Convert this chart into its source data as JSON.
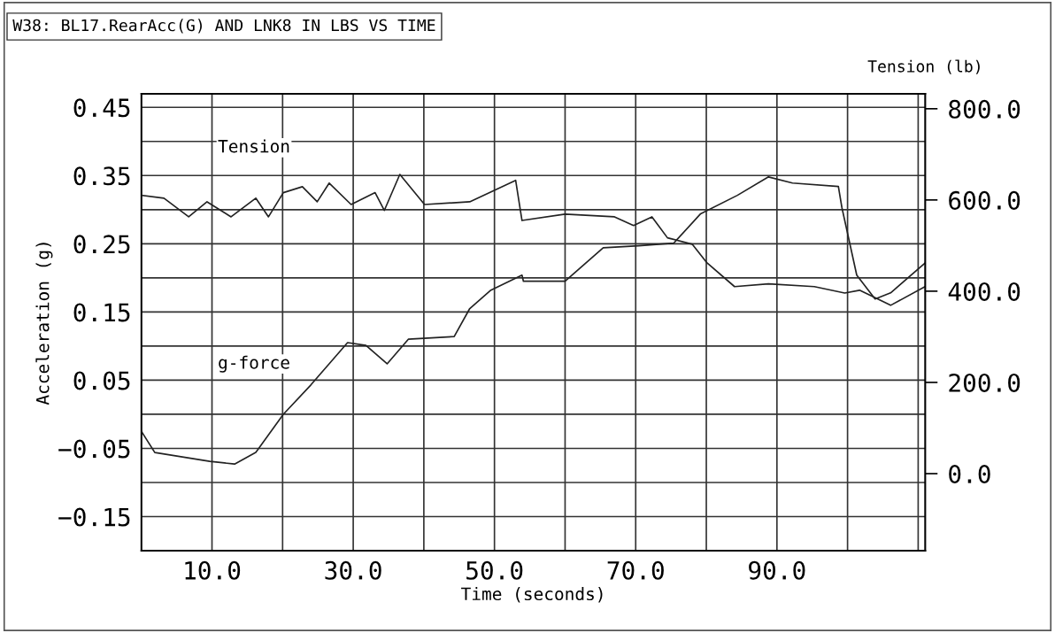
{
  "chart_data": {
    "type": "line",
    "title": "W38: BL17.RearAcc(G) AND LNK8 IN LBS VS TIME",
    "xlabel": "Time (seconds)",
    "ylabel": "Acceleration (g)",
    "y2label": "Tension (lb)",
    "xlim": [
      0,
      111
    ],
    "xticks": [
      {
        "value": 10,
        "label": "10.0"
      },
      {
        "value": 20,
        "label": null
      },
      {
        "value": 30,
        "label": "30.0"
      },
      {
        "value": 40,
        "label": null
      },
      {
        "value": 50,
        "label": "50.0"
      },
      {
        "value": 60,
        "label": null
      },
      {
        "value": 70,
        "label": "70.0"
      },
      {
        "value": 80,
        "label": null
      },
      {
        "value": 90,
        "label": "90.0"
      },
      {
        "value": 100,
        "label": null
      },
      {
        "value": 110,
        "label": null
      }
    ],
    "ylim": [
      -0.2,
      0.47
    ],
    "yticks": [
      {
        "value": -0.15,
        "label": "−0.15"
      },
      {
        "value": -0.1,
        "label": null
      },
      {
        "value": -0.05,
        "label": "−0.05"
      },
      {
        "value": 0,
        "label": null
      },
      {
        "value": 0.05,
        "label": "0.05"
      },
      {
        "value": 0.1,
        "label": null
      },
      {
        "value": 0.15,
        "label": "0.15"
      },
      {
        "value": 0.2,
        "label": null
      },
      {
        "value": 0.25,
        "label": "0.25"
      },
      {
        "value": 0.3,
        "label": null
      },
      {
        "value": 0.35,
        "label": "0.35"
      },
      {
        "value": 0.4,
        "label": null
      },
      {
        "value": 0.45,
        "label": "0.45"
      }
    ],
    "y2lim": [
      -169,
      833
    ],
    "y2ticks": [
      {
        "value": 0,
        "label": "0.0"
      },
      {
        "value": 200,
        "label": "200.0"
      },
      {
        "value": 400,
        "label": "400.0"
      },
      {
        "value": 600,
        "label": "600.0"
      },
      {
        "value": 800,
        "label": "800.0"
      }
    ],
    "grid": true,
    "line_style": "solid",
    "marker": "none",
    "series": [
      {
        "name": "g-force",
        "color": "#222222",
        "x": [
          0.0,
          1.9,
          9.7,
          13.2,
          16.2,
          20.1,
          24.0,
          29.2,
          31.8,
          34.8,
          37.8,
          44.3,
          46.5,
          49.5,
          53.9,
          54.1,
          60.0,
          65.4,
          70.4,
          75.4,
          79.2,
          84.4,
          88.8,
          92.2,
          98.7,
          99.2,
          101.3,
          103.9,
          106.1,
          111.0
        ],
        "values": [
          -0.025,
          -0.056,
          -0.069,
          -0.073,
          -0.056,
          0.0,
          0.043,
          0.105,
          0.101,
          0.074,
          0.11,
          0.114,
          0.155,
          0.182,
          0.204,
          0.195,
          0.195,
          0.244,
          0.247,
          0.251,
          0.294,
          0.321,
          0.348,
          0.339,
          0.334,
          0.303,
          0.204,
          0.169,
          0.178,
          0.222
        ]
      },
      {
        "name": "Tension",
        "color": "#222222",
        "axis": "y2",
        "x": [
          0.2,
          3.2,
          6.7,
          9.3,
          12.7,
          16.2,
          18.0,
          20.1,
          22.8,
          24.9,
          26.6,
          29.7,
          33.1,
          34.4,
          36.6,
          40.1,
          46.5,
          53.0,
          53.9,
          60.0,
          67.0,
          69.7,
          72.3,
          74.5,
          78.0,
          80.1,
          84.0,
          88.8,
          95.3,
          99.6,
          101.7,
          106.1,
          111.0
        ],
        "values": [
          610,
          604,
          563,
          596,
          563,
          604,
          563,
          616,
          629,
          596,
          637,
          590,
          616,
          577,
          656,
          590,
          596,
          643,
          555,
          569,
          563,
          544,
          563,
          517,
          503,
          462,
          410,
          416,
          410,
          396,
          402,
          369,
          410
        ]
      }
    ]
  }
}
